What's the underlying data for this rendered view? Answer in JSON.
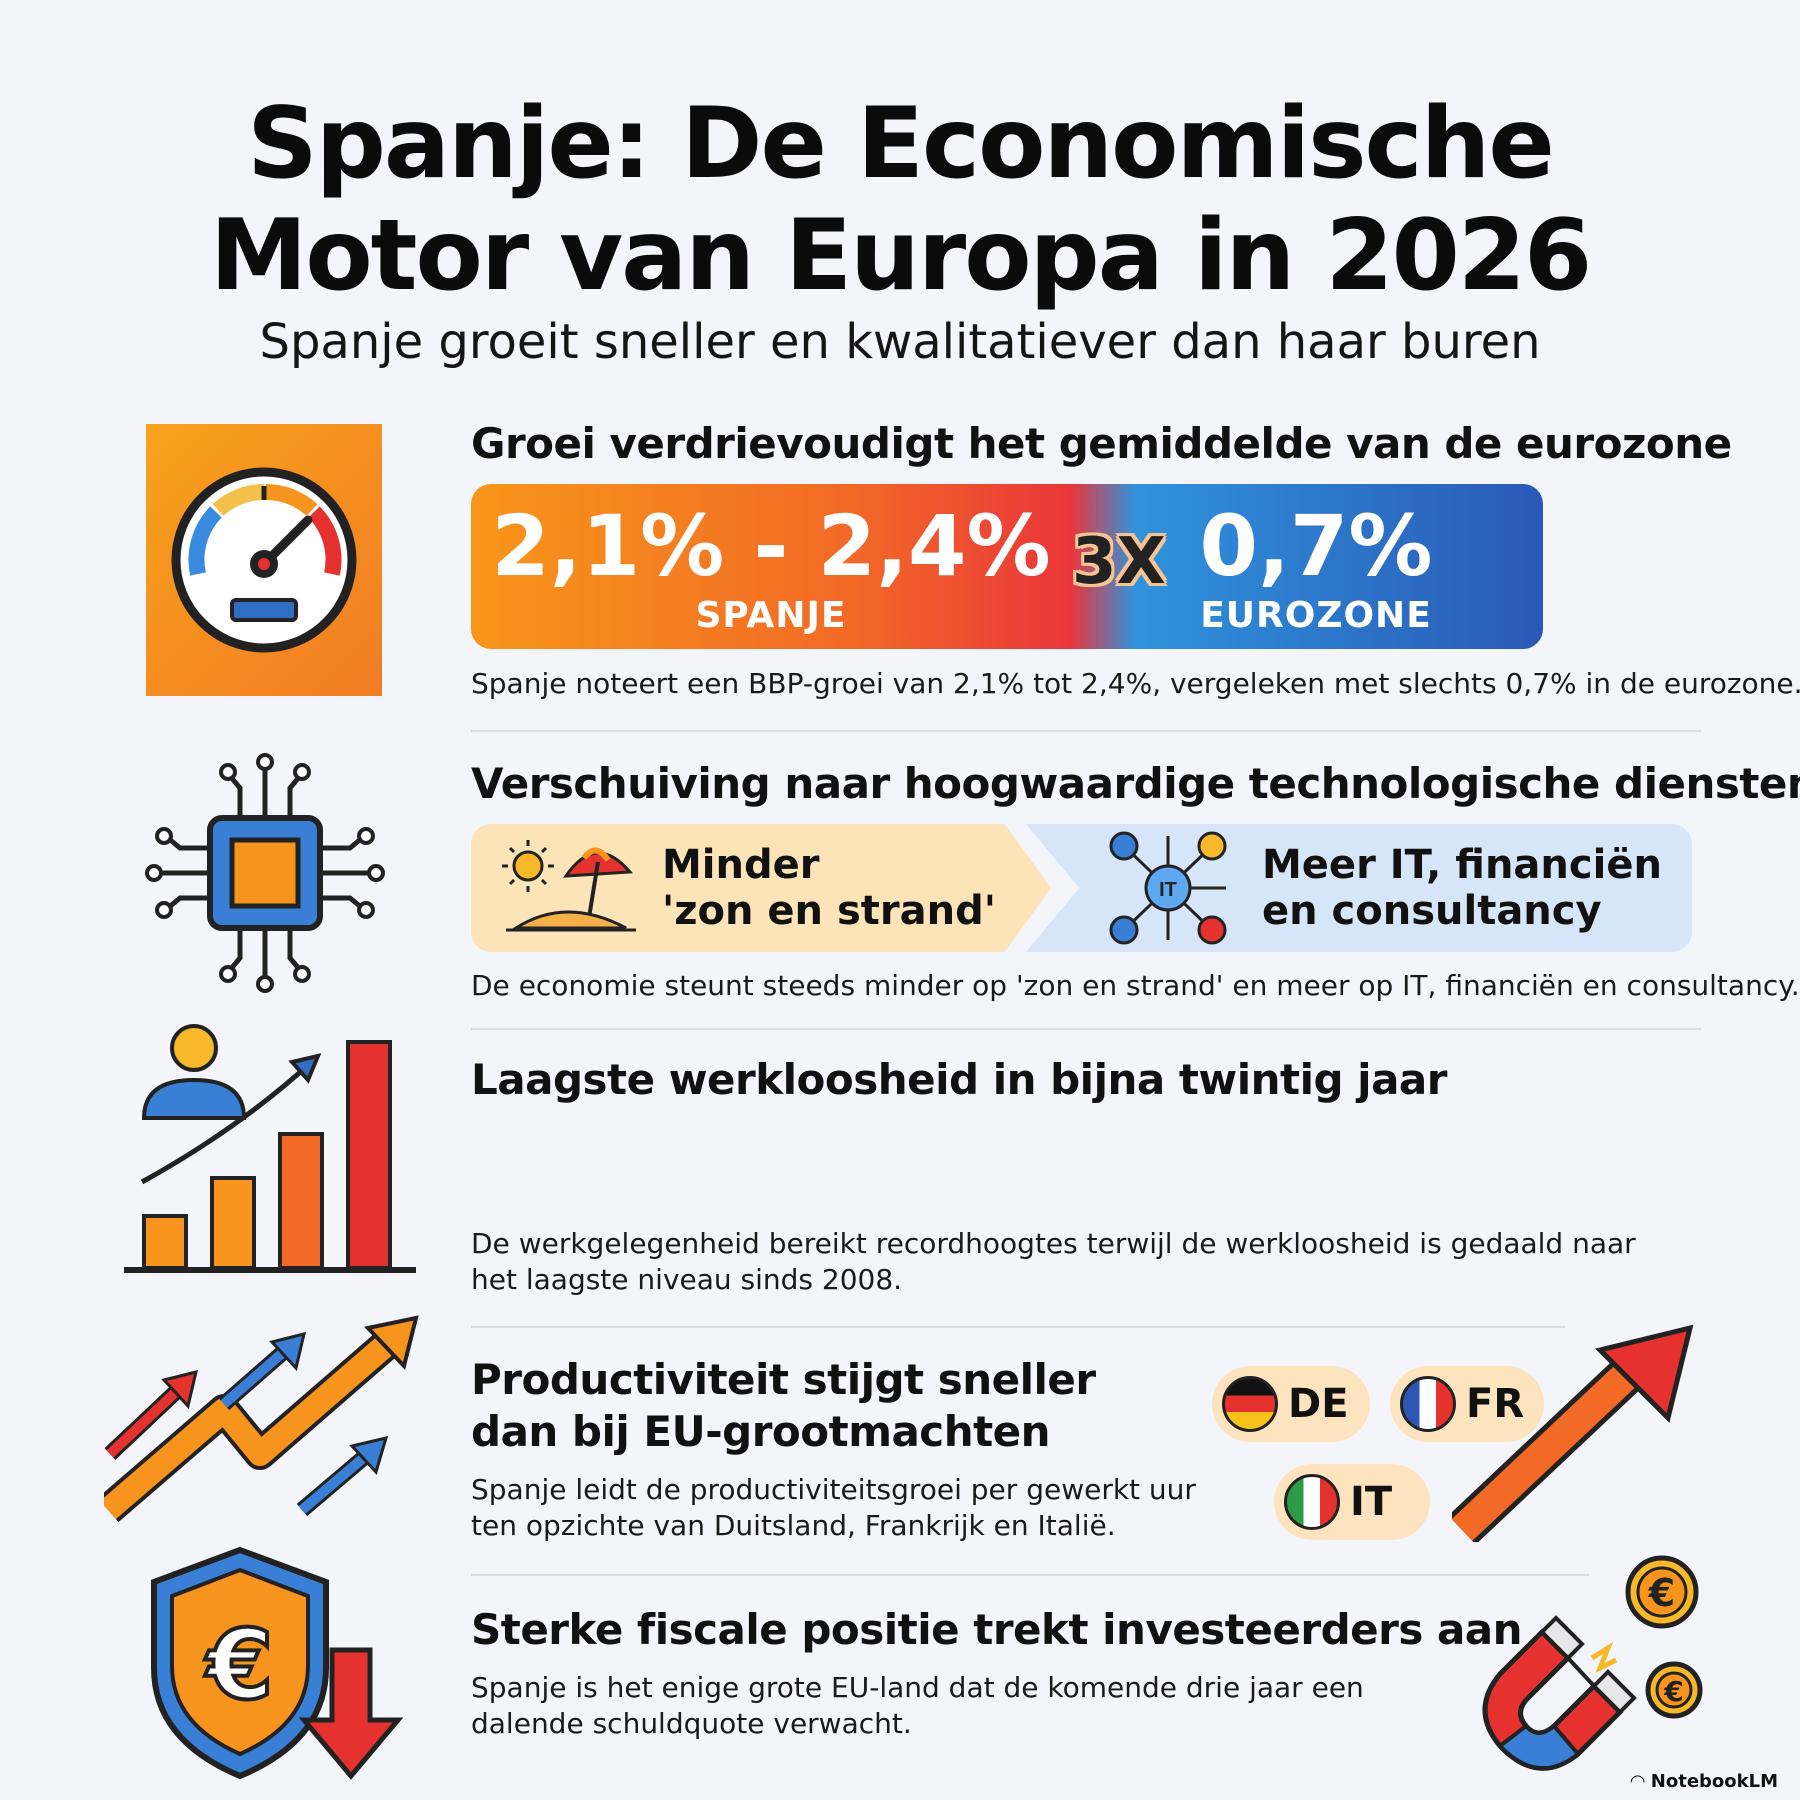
{
  "header": {
    "title_line1": "Spanje: De Economische",
    "title_line2": "Motor van Europa in 2026",
    "subtitle": "Spanje groeit sneller en kwalitatiever dan haar buren"
  },
  "sections": [
    {
      "title": "Groei verdrievoudigt het gemiddelde van de eurozone",
      "icon": "speedometer-icon",
      "comparison": {
        "left_value": "2,1% - 2,4%",
        "left_label": "SPANJE",
        "multiplier": "3X",
        "right_value": "0,7%",
        "right_label": "EUROZONE"
      },
      "description": "Spanje noteert een BBP-groei van 2,1% tot 2,4%, vergeleken met slechts 0,7% in de eurozone."
    },
    {
      "title": "Verschuiving naar hoogwaardige technologische diensten",
      "icon": "circuit-chip-icon",
      "shift": {
        "left_line1": "Minder",
        "left_line2": "'zon en strand'",
        "right_line1": "Meer IT, financiën",
        "right_line2": "en consultancy",
        "it_hub_label": "IT"
      },
      "description": "De economie steunt steeds minder op 'zon en strand' en meer op IT, financiën en consultancy."
    },
    {
      "title": "Laagste werkloosheid in bijna twintig jaar",
      "icon": "employment-growth-chart-icon",
      "description_line1": "De werkgelegenheid bereikt recordhoogtes terwijl de werkloosheid is gedaald naar",
      "description_line2": "het laagste niveau sinds 2008."
    },
    {
      "title_line1": "Productiviteit stijgt sneller",
      "title_line2": "dan bij EU-grootmachten",
      "icon": "rising-arrows-icon",
      "description_line1": "Spanje leidt de productiviteitsgroei per gewerkt uur",
      "description_line2": "ten opzichte van Duitsland, Frankrijk en Italië.",
      "countries": [
        "DE",
        "FR",
        "IT"
      ]
    },
    {
      "title": "Sterke fiscale positie trekt investeerders aan",
      "icon": "euro-shield-icon",
      "description_line1": "Spanje is het enige grote EU-land dat de komende drie jaar een",
      "description_line2": "dalende schuldquote verwacht.",
      "coin_symbol": "€"
    }
  ],
  "footer": {
    "brand": "NotebookLM"
  },
  "colors": {
    "orange": "#f7941d",
    "red": "#e5322f",
    "blue": "#2f6fc4",
    "light_orange": "#fde3b8",
    "light_blue": "#d6e6f8"
  }
}
